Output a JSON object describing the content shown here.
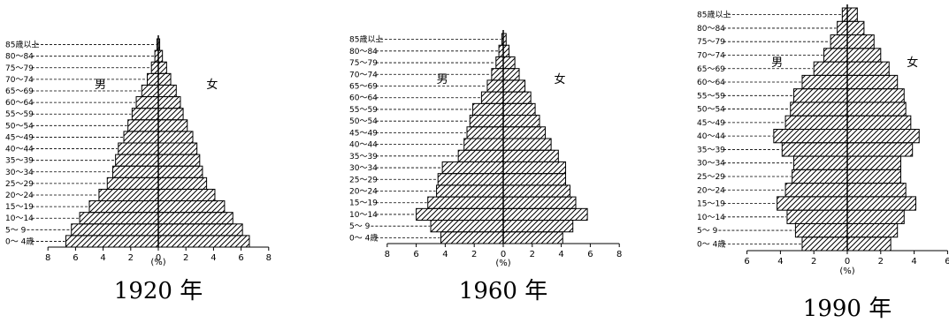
{
  "pattern_color": "#000000",
  "background": "#ffffff",
  "chart_data": [
    {
      "type": "bar",
      "orientation": "horizontal",
      "caption": "1920 年",
      "xlabel": "(%)",
      "male_label": "男",
      "female_label": "女",
      "xlim": [
        -8,
        8
      ],
      "xticks": [
        "8",
        "6",
        "4",
        "2",
        "0",
        "2",
        "4",
        "6",
        "8"
      ],
      "categories": [
        "0～ 4歳",
        "5～ 9",
        "10～14",
        "15～19",
        "20～24",
        "25～29",
        "30～34",
        "35～39",
        "40～44",
        "45～49",
        "50～54",
        "55～59",
        "60～64",
        "65～69",
        "70～74",
        "75～79",
        "80～84",
        "85歳以上"
      ],
      "series": [
        {
          "name": "男",
          "values": [
            6.7,
            6.3,
            5.7,
            5.0,
            4.3,
            3.7,
            3.3,
            3.1,
            2.9,
            2.5,
            2.2,
            1.9,
            1.6,
            1.2,
            0.8,
            0.5,
            0.25,
            0.1
          ]
        },
        {
          "name": "女",
          "values": [
            6.6,
            6.1,
            5.4,
            4.8,
            4.1,
            3.5,
            3.2,
            3.0,
            2.8,
            2.5,
            2.1,
            1.8,
            1.6,
            1.3,
            0.9,
            0.6,
            0.3,
            0.1
          ]
        }
      ]
    },
    {
      "type": "bar",
      "orientation": "horizontal",
      "caption": "1960 年",
      "xlabel": "(%)",
      "male_label": "男",
      "female_label": "女",
      "xlim": [
        -8,
        8
      ],
      "xticks": [
        "8",
        "6",
        "4",
        "2",
        "0",
        "2",
        "4",
        "6",
        "8"
      ],
      "categories": [
        "0～ 4歳",
        "5～ 9",
        "10～14",
        "15～19",
        "20～24",
        "25～29",
        "30～34",
        "35～39",
        "40～44",
        "45～49",
        "50～54",
        "55～59",
        "60～64",
        "65～69",
        "70～74",
        "75～79",
        "80～84",
        "85歳以上"
      ],
      "series": [
        {
          "name": "男",
          "values": [
            4.3,
            5.0,
            6.0,
            5.2,
            4.6,
            4.5,
            4.2,
            3.1,
            2.7,
            2.5,
            2.3,
            2.1,
            1.5,
            1.1,
            0.8,
            0.5,
            0.3,
            0.1
          ]
        },
        {
          "name": "女",
          "values": [
            4.1,
            4.8,
            5.8,
            5.0,
            4.6,
            4.3,
            4.3,
            3.8,
            3.3,
            2.9,
            2.5,
            2.2,
            1.9,
            1.5,
            1.1,
            0.8,
            0.4,
            0.2
          ]
        }
      ]
    },
    {
      "type": "bar",
      "orientation": "horizontal",
      "caption": "1990 年",
      "xlabel": "(%)",
      "male_label": "男",
      "female_label": "女",
      "xlim": [
        -6,
        6
      ],
      "xticks": [
        "6",
        "4",
        "2",
        "0",
        "2",
        "4",
        "6"
      ],
      "categories": [
        "0～ 4歳",
        "5～ 9",
        "10～14",
        "15～19",
        "20～24",
        "25～29",
        "30～34",
        "35～39",
        "40～44",
        "45～49",
        "50～54",
        "55～59",
        "60～64",
        "65～69",
        "70～74",
        "75～79",
        "80～84",
        "85歳以上"
      ],
      "series": [
        {
          "name": "男",
          "values": [
            2.7,
            3.1,
            3.6,
            4.2,
            3.7,
            3.3,
            3.2,
            3.9,
            4.4,
            3.7,
            3.4,
            3.2,
            2.7,
            2.0,
            1.4,
            1.0,
            0.6,
            0.3
          ]
        },
        {
          "name": "女",
          "values": [
            2.6,
            3.0,
            3.4,
            4.1,
            3.5,
            3.2,
            3.2,
            3.9,
            4.3,
            3.8,
            3.5,
            3.4,
            3.0,
            2.5,
            2.0,
            1.6,
            1.0,
            0.6
          ]
        }
      ]
    }
  ]
}
